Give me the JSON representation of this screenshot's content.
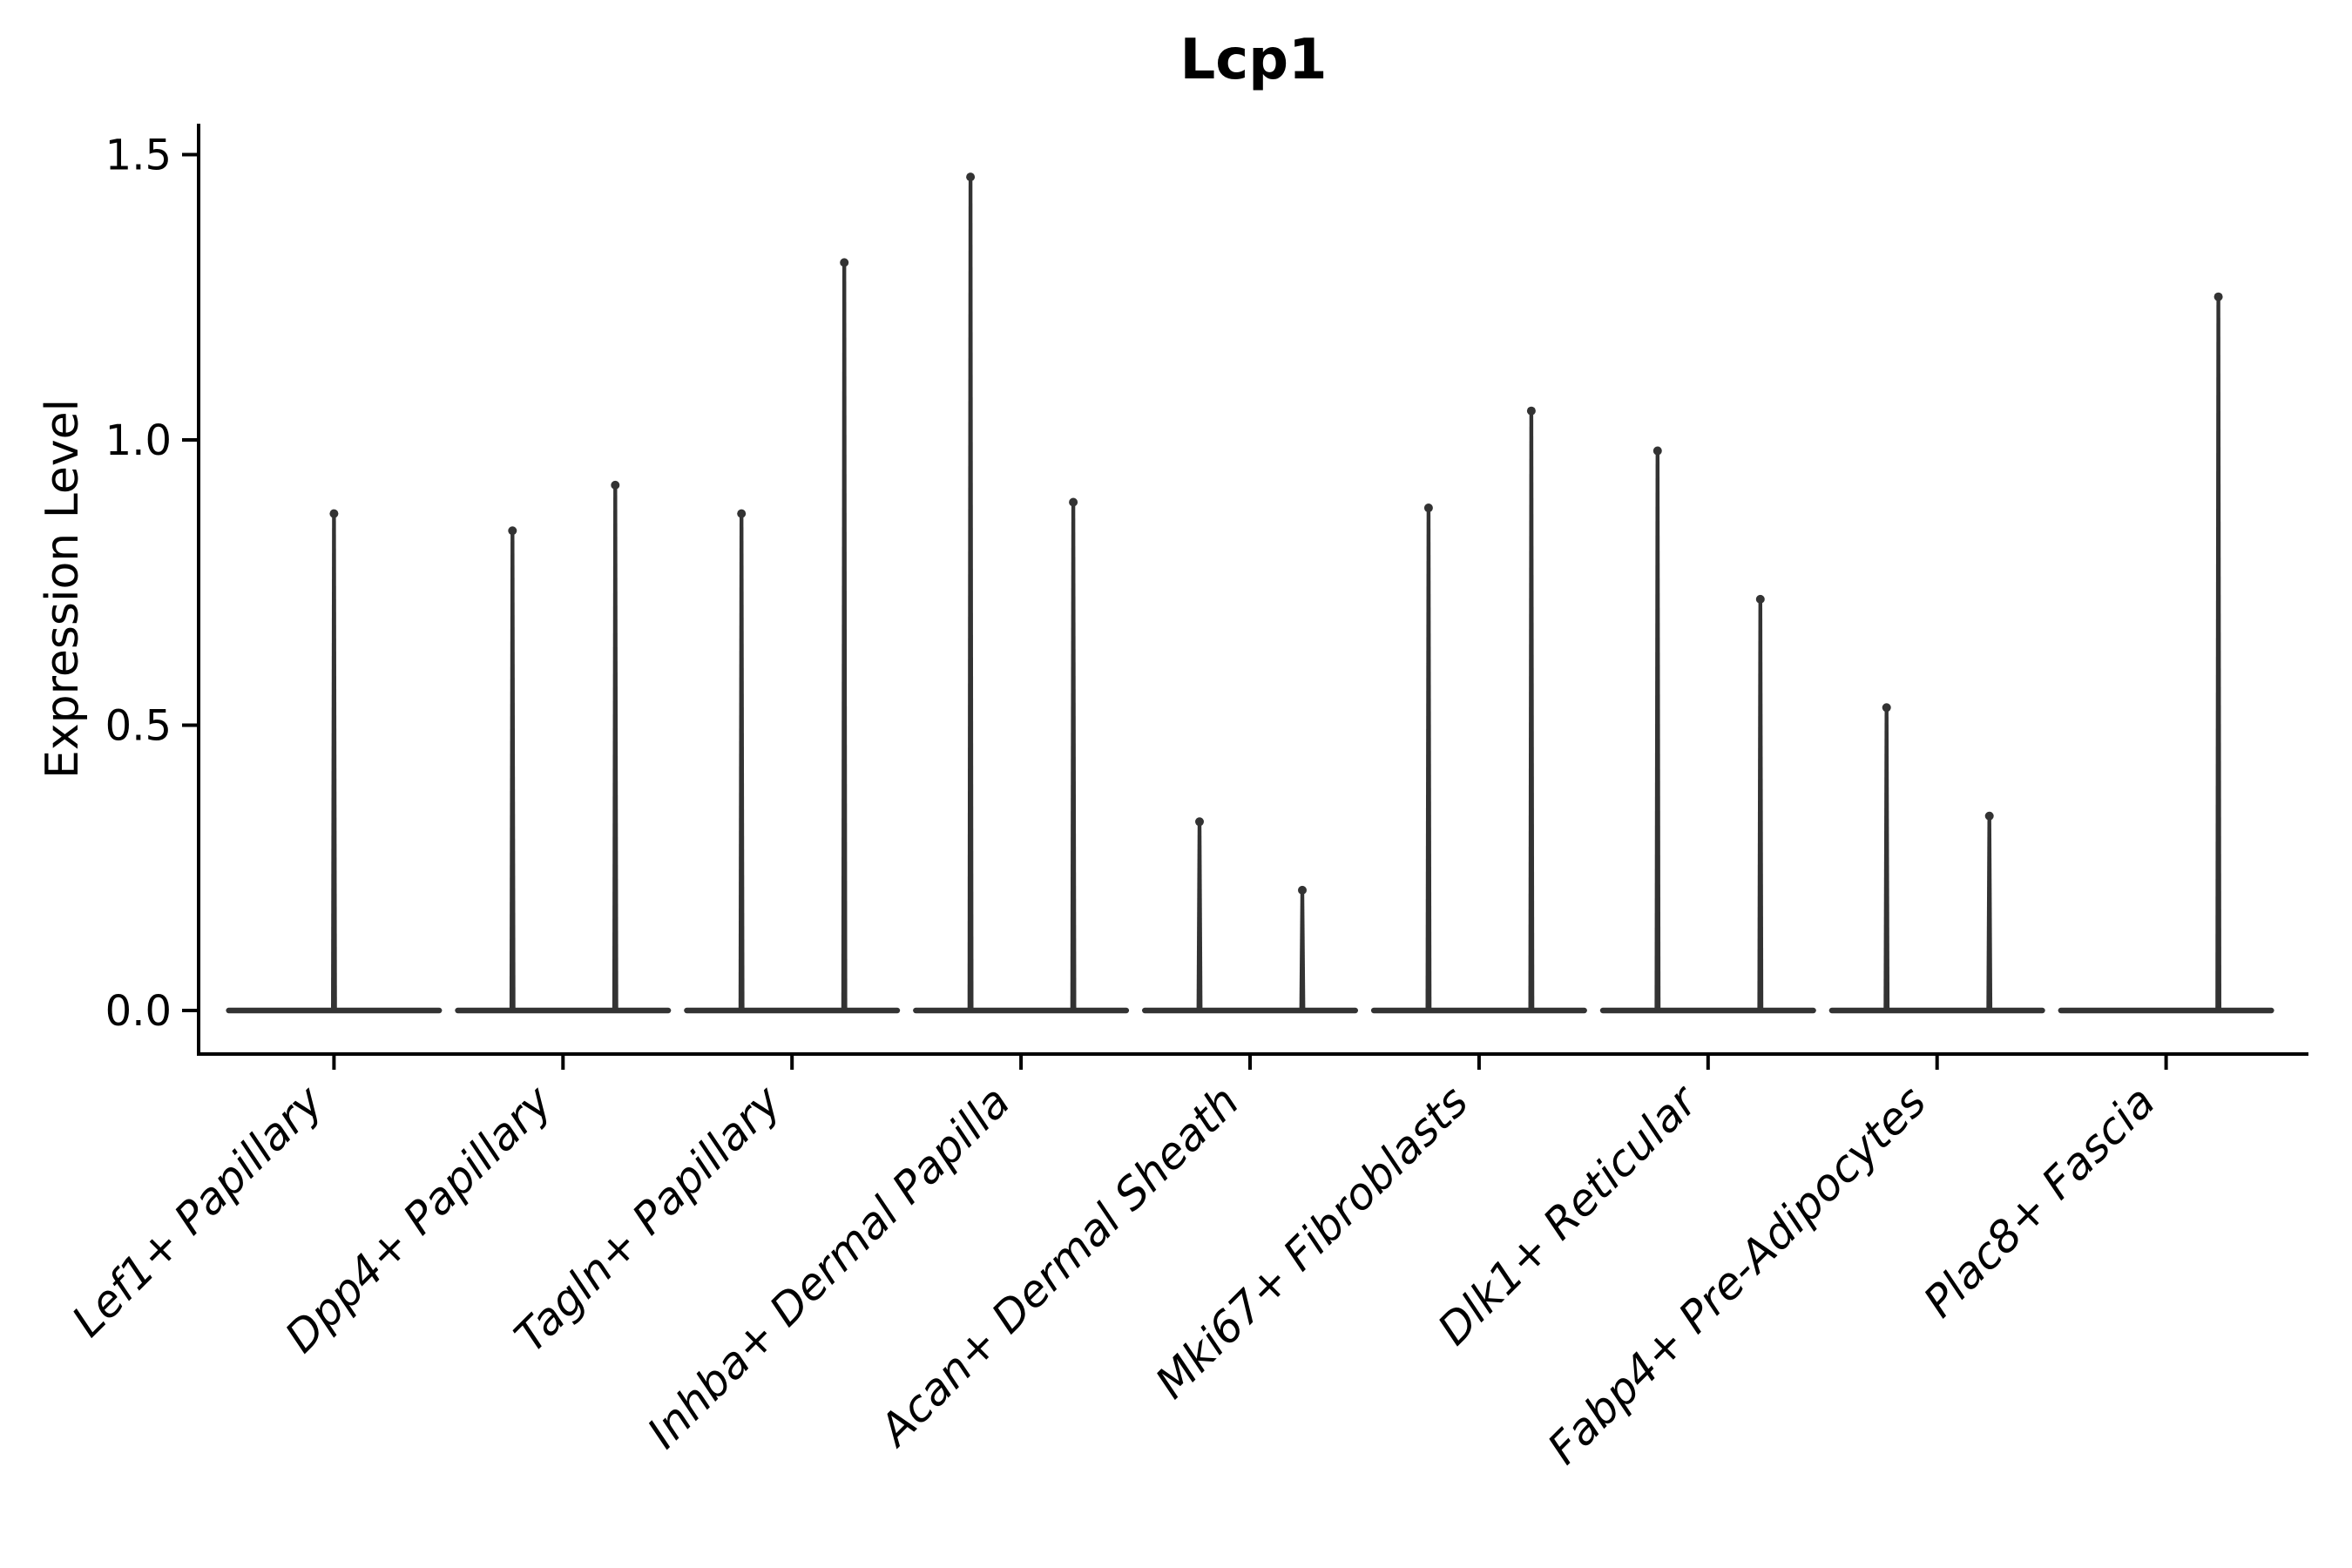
{
  "chart_data": {
    "type": "violin",
    "title": "Lcp1",
    "ylabel": "Expression Level",
    "xlabel": "",
    "grid": false,
    "legend": null,
    "ylim": [
      -0.08,
      1.56
    ],
    "ytick_values": [
      0.0,
      0.5,
      1.0,
      1.5
    ],
    "ytick_labels": [
      "0.0",
      "0.5",
      "1.0",
      "1.5"
    ],
    "categories": [
      "Lef1+ Papillary",
      "Dpp4+ Papillary",
      "Tagln+ Papillary",
      "Inhba+ Dermal Papilla",
      "Acan+ Dermal Sheath",
      "Mki67+ Fibroblasts",
      "Dlk1+ Reticular",
      "Fabp4+ Pre-Adipocytes",
      "Plac8+ Fascia"
    ],
    "series": [
      {
        "category": "Lef1+ Papillary",
        "violins": [
          {
            "slot": "center",
            "max": 0.88
          }
        ]
      },
      {
        "category": "Dpp4+ Papillary",
        "violins": [
          {
            "slot": "left",
            "max": 0.85
          },
          {
            "slot": "right",
            "max": 0.93
          }
        ]
      },
      {
        "category": "Tagln+ Papillary",
        "violins": [
          {
            "slot": "left",
            "max": 0.88
          },
          {
            "slot": "right",
            "max": 1.32
          }
        ]
      },
      {
        "category": "Inhba+ Dermal Papilla",
        "violins": [
          {
            "slot": "left",
            "max": 1.47
          },
          {
            "slot": "right",
            "max": 0.9
          }
        ]
      },
      {
        "category": "Acan+ Dermal Sheath",
        "violins": [
          {
            "slot": "left",
            "max": 0.34
          },
          {
            "slot": "right",
            "max": 0.22
          }
        ]
      },
      {
        "category": "Mki67+ Fibroblasts",
        "violins": [
          {
            "slot": "left",
            "max": 0.89
          },
          {
            "slot": "right",
            "max": 1.06
          }
        ]
      },
      {
        "category": "Dlk1+ Reticular",
        "violins": [
          {
            "slot": "left",
            "max": 0.99
          },
          {
            "slot": "right",
            "max": 0.73
          }
        ]
      },
      {
        "category": "Fabp4+ Pre-Adipocytes",
        "violins": [
          {
            "slot": "left",
            "max": 0.54
          },
          {
            "slot": "right",
            "max": 0.35
          }
        ]
      },
      {
        "category": "Plac8+ Fascia",
        "violins": [
          {
            "slot": "left",
            "max": 0.0
          },
          {
            "slot": "right",
            "max": 1.26
          }
        ]
      }
    ],
    "baseline_value": 0.0,
    "observation": "each category shows a flat zero-expression body with thin density spikes up to the max expression"
  },
  "colors": {
    "background": "#ffffff",
    "violin": "#333333",
    "axis": "#000000",
    "text": "#000000"
  }
}
